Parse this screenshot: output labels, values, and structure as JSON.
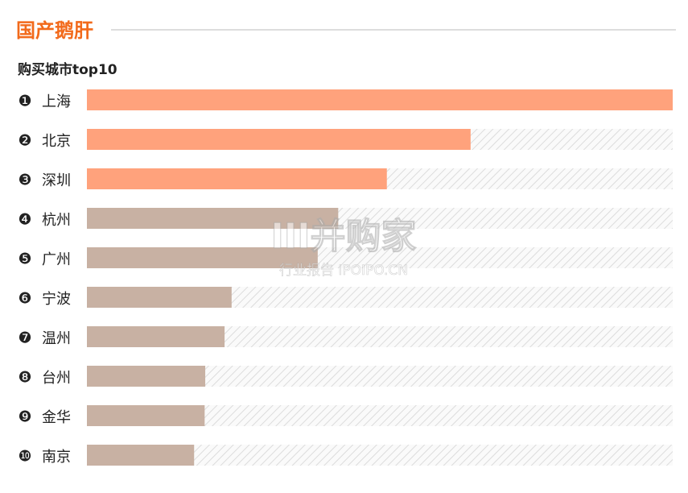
{
  "chart_data": {
    "type": "bar",
    "orientation": "horizontal",
    "title": "国产鹅肝",
    "subtitle": "购买城市top10",
    "ranks": [
      "❶",
      "❷",
      "❸",
      "❹",
      "❺",
      "❻",
      "❼",
      "❽",
      "❾",
      "❿"
    ],
    "categories": [
      "上海",
      "北京",
      "深圳",
      "杭州",
      "广州",
      "宁波",
      "温州",
      "台州",
      "金华",
      "南京"
    ],
    "values": [
      100,
      65.5,
      51.2,
      42.9,
      39.4,
      24.7,
      23.5,
      20.2,
      20.1,
      18.3
    ],
    "colors": [
      "#ffa27c",
      "#ffa27c",
      "#ffa27c",
      "#c8b1a3",
      "#c8b1a3",
      "#c8b1a3",
      "#c8b1a3",
      "#c8b1a3",
      "#c8b1a3",
      "#c8b1a3"
    ],
    "xlim": [
      0,
      100
    ],
    "watermark": {
      "logo": "III并购家",
      "text": "行业报告 IPOIPO.CN"
    }
  }
}
